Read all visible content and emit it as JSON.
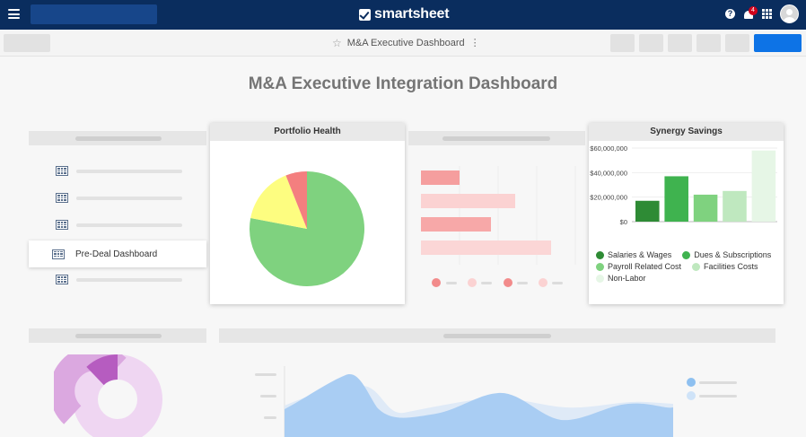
{
  "topbar": {
    "logo_text": "smartsheet",
    "notification_count": "4",
    "help_glyph": "?"
  },
  "toolbar": {
    "document_title": "M&A Executive Dashboard"
  },
  "dashboard": {
    "title": "M&A Executive Integration Dashboard",
    "nav_list": {
      "selected_item": "Pre-Deal Dashboard"
    },
    "portfolio_health": {
      "title": "Portfolio Health",
      "colors": [
        "#7fd27f",
        "#fdfd80",
        "#f47f7f"
      ]
    },
    "synergy_savings": {
      "title": "Synergy Savings",
      "colors": {
        "salaries_wages": "#2e8b35",
        "dues_subscriptions": "#3fb34f",
        "payroll_related_cost": "#7fd27f",
        "facilities_costs": "#bfe8bf",
        "non_labor": "#e6f6e6"
      }
    }
  },
  "chart_data": [
    {
      "type": "pie",
      "title": "Portfolio Health",
      "values": [
        78,
        16,
        6
      ],
      "colors": [
        "#7fd27f",
        "#fdfd80",
        "#f47f7f"
      ]
    },
    {
      "type": "bar",
      "title": "Synergy Savings",
      "categories": [
        "Salaries & Wages",
        "Dues & Subscriptions",
        "Payroll Related Cost",
        "Facilities Costs",
        "Non-Labor"
      ],
      "values": [
        17000000,
        37000000,
        22000000,
        25000000,
        58000000
      ],
      "colors": [
        "#2e8b35",
        "#3fb34f",
        "#7fd27f",
        "#bfe8bf",
        "#e6f6e6"
      ],
      "yticks": [
        "$60,000,000",
        "$40,000,000",
        "$20,000,000",
        "$0"
      ],
      "ylim": [
        0,
        60000000
      ],
      "legend_position": "bottom"
    }
  ]
}
